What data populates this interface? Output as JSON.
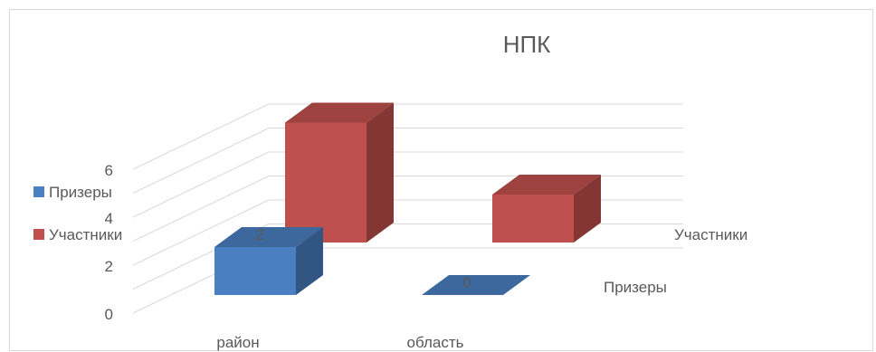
{
  "chart_data": {
    "type": "bar",
    "title": "НПК",
    "categories": [
      "район",
      "область"
    ],
    "series": [
      {
        "name": "Призеры",
        "values": [
          2,
          0
        ],
        "color": "#4a7fc1"
      },
      {
        "name": "Участники",
        "values": [
          5,
          2
        ],
        "color": "#c0504d"
      }
    ],
    "ylim": [
      0,
      6
    ],
    "yticks": [
      0,
      2,
      4,
      6
    ],
    "data_labels": [
      "2",
      "0"
    ],
    "legend": "left",
    "grid": true,
    "three_d": true
  }
}
